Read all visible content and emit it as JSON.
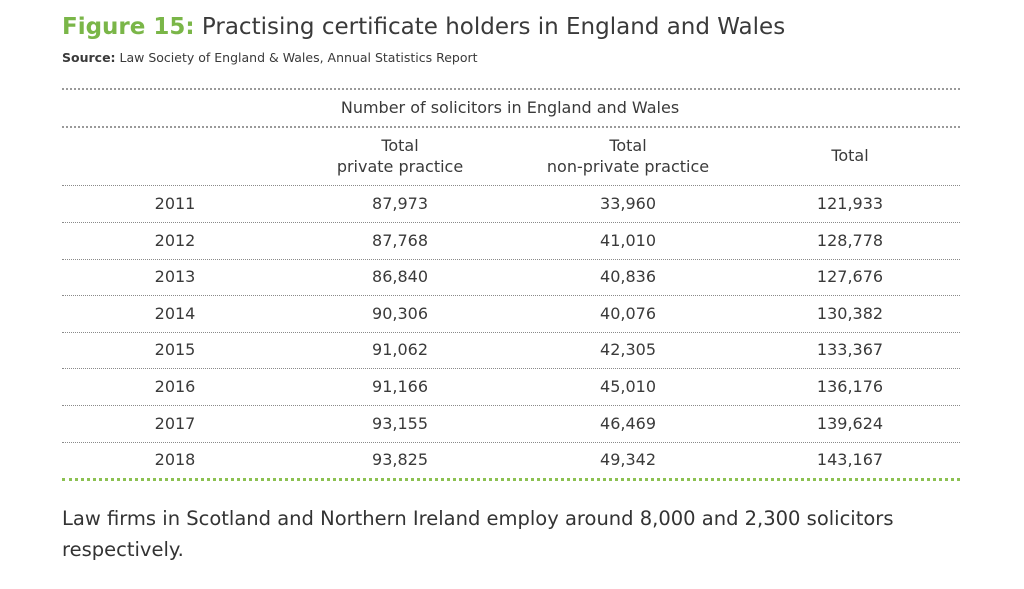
{
  "figure": {
    "label": "Figure 15:",
    "title": "Practising certificate holders in England and Wales"
  },
  "source": {
    "label": "Source:",
    "text": "Law Society of England & Wales, Annual Statistics Report"
  },
  "table": {
    "group_header": "Number of solicitors in England and Wales",
    "columns": [
      [
        "Total",
        "private practice"
      ],
      [
        "Total",
        "non-private practice"
      ],
      [
        "Total"
      ]
    ],
    "rows": [
      [
        "2011",
        "87,973",
        "33,960",
        "121,933"
      ],
      [
        "2012",
        "87,768",
        "41,010",
        "128,778"
      ],
      [
        "2013",
        "86,840",
        "40,836",
        "127,676"
      ],
      [
        "2014",
        "90,306",
        "40,076",
        "130,382"
      ],
      [
        "2015",
        "91,062",
        "42,305",
        "133,367"
      ],
      [
        "2016",
        "91,166",
        "45,010",
        "136,176"
      ],
      [
        "2017",
        "93,155",
        "46,469",
        "139,624"
      ],
      [
        "2018",
        "93,825",
        "49,342",
        "143,167"
      ]
    ]
  },
  "note": "Law firms in Scotland and Northern Ireland employ around 8,000 and 2,300 solicitors respectively."
}
